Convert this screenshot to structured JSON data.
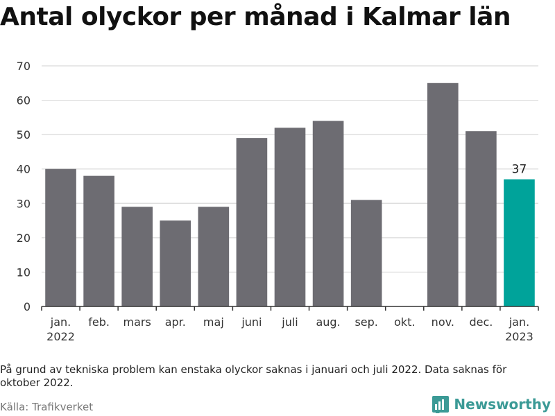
{
  "title": "Antal olyckor per månad i Kalmar län",
  "footnote": "På grund av tekniska problem kan enstaka olyckor saknas i januari och juli 2022. Data saknas för oktober 2022.",
  "source": "Källa: Trafikverket",
  "brand": "Newsworthy",
  "colors": {
    "bar": "#6d6c72",
    "highlight": "#00a39a",
    "grid": "#d9d9d9",
    "axis": "#333333",
    "brand": "#3b9a96"
  },
  "chart_data": {
    "type": "bar",
    "title": "Antal olyckor per månad i Kalmar län",
    "categories": [
      [
        "jan.",
        "2022"
      ],
      [
        "feb."
      ],
      [
        "mars"
      ],
      [
        "apr."
      ],
      [
        "maj"
      ],
      [
        "juni"
      ],
      [
        "juli"
      ],
      [
        "aug."
      ],
      [
        "sep."
      ],
      [
        "okt."
      ],
      [
        "nov."
      ],
      [
        "dec."
      ],
      [
        "jan.",
        "2023"
      ]
    ],
    "values": [
      40,
      38,
      29,
      25,
      29,
      49,
      52,
      54,
      31,
      null,
      65,
      51,
      37
    ],
    "highlight_index": 12,
    "data_labels": [
      {
        "index": 12,
        "text": "37"
      }
    ],
    "ylim": [
      0,
      70
    ],
    "yticks": [
      0,
      10,
      20,
      30,
      40,
      50,
      60,
      70
    ],
    "grid": true,
    "xlabel": "",
    "ylabel": ""
  }
}
